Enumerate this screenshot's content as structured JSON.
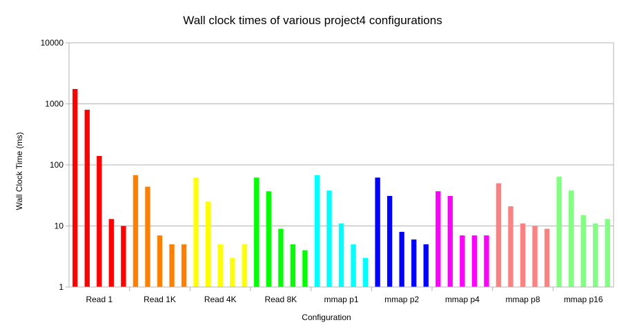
{
  "chart_data": {
    "type": "bar",
    "title": "Wall clock times of various project4 configurations",
    "xlabel": "Configuration",
    "ylabel": "Wall Clock Time (ms)",
    "yscale": "log",
    "ylim": [
      1,
      10000
    ],
    "yticks": [
      "1",
      "10",
      "100",
      "1000",
      "10000"
    ],
    "grid": "horizontal",
    "legend": "none",
    "categories": [
      "Read 1",
      "Read 1K",
      "Read 4K",
      "Read 8K",
      "mmap p1",
      "mmap p2",
      "mmap p4",
      "mmap p8",
      "mmap p16"
    ],
    "colors": [
      "#ff0000",
      "#ff8000",
      "#ffff00",
      "#00ff00",
      "#00ffff",
      "#0000ff",
      "#ff00ff",
      "#ff8080",
      "#80ff80"
    ],
    "series_per_group": 5,
    "values": [
      [
        1750,
        800,
        140,
        13,
        10
      ],
      [
        68,
        44,
        7,
        5,
        5
      ],
      [
        62,
        25,
        5,
        3,
        5
      ],
      [
        62,
        37,
        9,
        5,
        4
      ],
      [
        68,
        38,
        11,
        5,
        3
      ],
      [
        62,
        31,
        8,
        6,
        5
      ],
      [
        37,
        31,
        7,
        7,
        7
      ],
      [
        50,
        21,
        11,
        10,
        9
      ],
      [
        64,
        38,
        15,
        11,
        13
      ]
    ]
  }
}
